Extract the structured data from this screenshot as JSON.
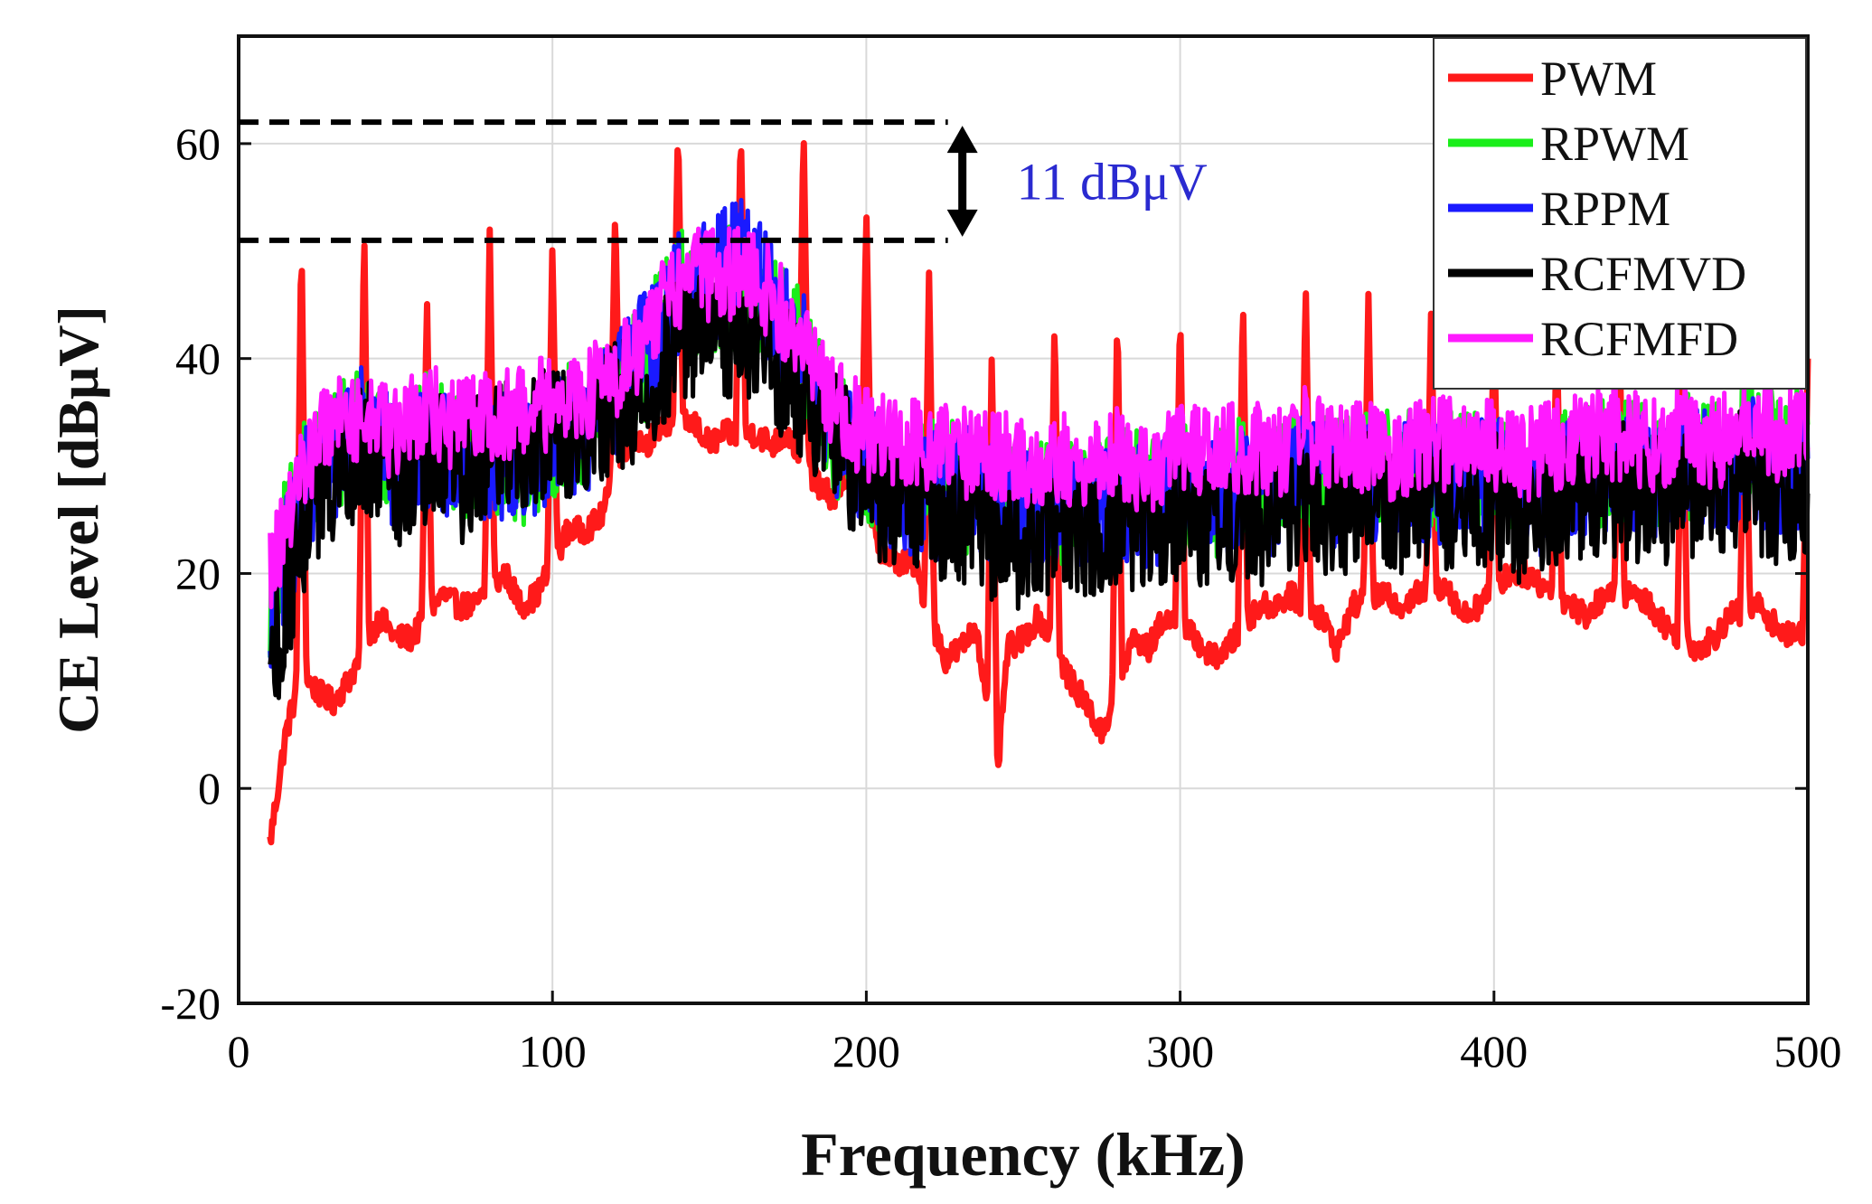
{
  "chart_data": {
    "type": "line",
    "xlabel": "Frequency (kHz)",
    "ylabel": "CE Level [dBμV]",
    "xlim": [
      0,
      500
    ],
    "ylim": [
      -20,
      70
    ],
    "xticks": [
      "0",
      "100",
      "200",
      "300",
      "400",
      "500"
    ],
    "yticks": [
      "-20",
      "0",
      "20",
      "40",
      "60"
    ],
    "grid": true,
    "legend": {
      "placement": "top-right",
      "entries": [
        "PWM",
        "RPWM",
        "RPPM",
        "RCFMVD",
        "RCFMFD"
      ]
    },
    "annotation": {
      "text": "11 dBμV",
      "color": "#2a2ad0",
      "upper_level": 62,
      "lower_level": 51,
      "x_from": 0,
      "x_to": 226
    },
    "series": [
      {
        "name": "PWM",
        "color": "#ff1a1a",
        "peaks": [
          [
            20,
            52
          ],
          [
            40,
            53
          ],
          [
            60,
            46
          ],
          [
            80,
            52
          ],
          [
            100,
            51
          ],
          [
            120,
            54
          ],
          [
            140,
            62
          ],
          [
            160,
            62
          ],
          [
            180,
            62
          ],
          [
            200,
            54
          ],
          [
            220,
            48
          ],
          [
            240,
            41
          ],
          [
            260,
            44
          ],
          [
            280,
            45
          ],
          [
            300,
            45
          ],
          [
            320,
            46
          ],
          [
            340,
            47
          ],
          [
            360,
            46
          ],
          [
            380,
            45
          ],
          [
            400,
            44
          ],
          [
            420,
            43
          ],
          [
            440,
            42
          ],
          [
            460,
            42
          ],
          [
            480,
            41
          ],
          [
            500,
            40
          ]
        ],
        "x": [
          10,
          15,
          20,
          25,
          30,
          35,
          45,
          50,
          55,
          65,
          70,
          75,
          85,
          90,
          95,
          105,
          110,
          115,
          125,
          130,
          135,
          145,
          150,
          155,
          165,
          170,
          175,
          185,
          190,
          195,
          205,
          210,
          215,
          225,
          230,
          235,
          242,
          245,
          250,
          255,
          265,
          270,
          275,
          285,
          290,
          295,
          305,
          310,
          315,
          325,
          330,
          335,
          345,
          350,
          355,
          365,
          370,
          375,
          385,
          390,
          395,
          405,
          410,
          415,
          425,
          430,
          435,
          445,
          450,
          455,
          465,
          470,
          475,
          485,
          490,
          495,
          500
        ],
        "values": [
          -5,
          5,
          11,
          9,
          8,
          10,
          16,
          14,
          14,
          18,
          17,
          17,
          20,
          17,
          18,
          24,
          24,
          25,
          33,
          32,
          34,
          34,
          32,
          33,
          33,
          32,
          33,
          28,
          27,
          30,
          22,
          21,
          21,
          12,
          13,
          15,
          2,
          13,
          14,
          16,
          10,
          8,
          5,
          14,
          13,
          16,
          14,
          12,
          13,
          17,
          17,
          18,
          16,
          13,
          17,
          18,
          17,
          18,
          19,
          16,
          17,
          20,
          20,
          19,
          17,
          16,
          18,
          18,
          17,
          15,
          13,
          14,
          16,
          17,
          15,
          14,
          15
        ]
      },
      {
        "name": "RPWM",
        "color": "#1aee1a",
        "x": [
          10,
          20,
          30,
          40,
          50,
          60,
          70,
          80,
          90,
          100,
          110,
          120,
          130,
          140,
          150,
          160,
          170,
          180,
          190,
          200,
          210,
          220,
          230,
          240,
          250,
          260,
          270,
          280,
          290,
          300,
          310,
          320,
          330,
          340,
          350,
          360,
          370,
          380,
          390,
          400,
          410,
          420,
          430,
          440,
          450,
          460,
          470,
          480,
          490,
          500
        ],
        "values": [
          18,
          28,
          32,
          33,
          30,
          33,
          31,
          32,
          30,
          33,
          34,
          36,
          40,
          46,
          46,
          47,
          44,
          40,
          33,
          30,
          28,
          29,
          28,
          27,
          26,
          27,
          26,
          28,
          27,
          28,
          27,
          29,
          28,
          30,
          29,
          30,
          29,
          30,
          29,
          30,
          28,
          29,
          30,
          31,
          30,
          31,
          30,
          32,
          31,
          32
        ]
      },
      {
        "name": "RPPM",
        "color": "#1a1aff",
        "x": [
          10,
          20,
          30,
          40,
          50,
          60,
          70,
          80,
          90,
          100,
          110,
          120,
          130,
          140,
          150,
          160,
          170,
          180,
          190,
          200,
          210,
          220,
          230,
          240,
          250,
          260,
          270,
          280,
          290,
          300,
          310,
          320,
          330,
          340,
          350,
          360,
          370,
          380,
          390,
          400,
          410,
          420,
          430,
          440,
          450,
          460,
          470,
          480,
          490,
          500
        ],
        "values": [
          15,
          27,
          31,
          34,
          30,
          32,
          30,
          31,
          31,
          32,
          33,
          36,
          41,
          46,
          47,
          50,
          45,
          40,
          33,
          30,
          28,
          27,
          28,
          27,
          26,
          27,
          25,
          27,
          26,
          28,
          27,
          28,
          27,
          29,
          28,
          29,
          28,
          29,
          28,
          29,
          27,
          28,
          29,
          30,
          28,
          30,
          29,
          31,
          29,
          30
        ]
      },
      {
        "name": "RCFMVD",
        "color": "#000000",
        "x": [
          10,
          20,
          30,
          40,
          50,
          60,
          70,
          80,
          90,
          100,
          110,
          120,
          130,
          140,
          150,
          160,
          170,
          180,
          190,
          200,
          210,
          220,
          230,
          240,
          250,
          260,
          270,
          280,
          290,
          300,
          310,
          320,
          330,
          340,
          350,
          360,
          370,
          380,
          390,
          400,
          410,
          420,
          430,
          440,
          450,
          460,
          470,
          480,
          490,
          500
        ],
        "values": [
          10,
          24,
          29,
          32,
          28,
          31,
          29,
          31,
          32,
          33,
          34,
          35,
          38,
          42,
          43,
          42,
          40,
          37,
          33,
          28,
          27,
          26,
          25,
          24,
          23,
          25,
          24,
          25,
          24,
          26,
          25,
          26,
          25,
          27,
          26,
          27,
          26,
          27,
          26,
          27,
          25,
          26,
          27,
          28,
          26,
          28,
          27,
          29,
          27,
          28
        ]
      },
      {
        "name": "RCFMFD",
        "color": "#ff1aff",
        "x": [
          10,
          20,
          30,
          40,
          50,
          60,
          70,
          80,
          90,
          100,
          110,
          120,
          130,
          140,
          150,
          160,
          170,
          180,
          190,
          200,
          210,
          220,
          230,
          240,
          250,
          260,
          270,
          280,
          290,
          300,
          310,
          320,
          330,
          340,
          350,
          360,
          370,
          380,
          390,
          400,
          410,
          420,
          430,
          440,
          450,
          460,
          470,
          480,
          490,
          500
        ],
        "values": [
          20,
          30,
          34,
          35,
          33,
          35,
          34,
          35,
          35,
          36,
          37,
          38,
          42,
          47,
          48,
          48,
          46,
          41,
          36,
          33,
          32,
          32,
          31,
          31,
          30,
          31,
          30,
          31,
          30,
          32,
          31,
          32,
          31,
          33,
          32,
          32,
          31,
          32,
          32,
          32,
          31,
          32,
          33,
          33,
          32,
          33,
          32,
          34,
          33,
          33
        ]
      }
    ]
  }
}
